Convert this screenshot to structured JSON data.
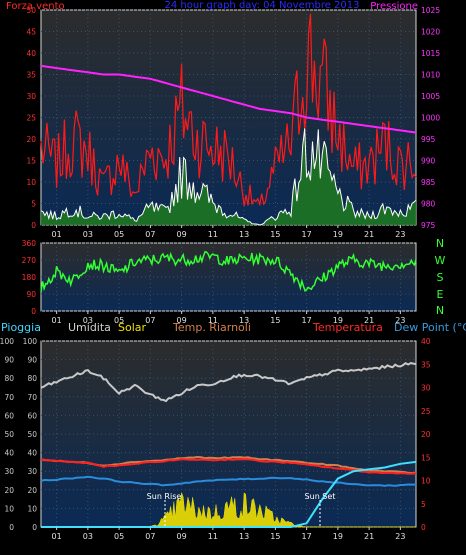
{
  "header": {
    "wind_label": "Forza vento",
    "title": "24 hour graph day: 04 Novembre 2013",
    "pressure_label": "Pressione"
  },
  "direction_labels": [
    "N",
    "W",
    "S",
    "E",
    "N"
  ],
  "lower_legend": {
    "rain": "Pioggia",
    "humidity": "Umidita",
    "solar": "Solar",
    "feels_like": "Temp. Riarnoli",
    "temperature": "Temperatura",
    "dew_point": "Dew Point (°C)"
  },
  "annotations": {
    "sunrise": "Sun Rise",
    "sunset": "Sun Set"
  },
  "colors": {
    "wind_gust": "#ff1a1a",
    "wind_avg": "#ffffff",
    "wind_fill": "#1f7a1f",
    "pressure": "#ff22ff",
    "direction": "#33ff33",
    "humidity": "#c8c8c8",
    "solar": "#f0e000",
    "temperature": "#ff2020",
    "feels_like": "#d08050",
    "dew_point": "#2a8cdc",
    "rain": "#40e0ff",
    "panel_top": "#2a2a2a",
    "panel_bottom": "#0a2a55"
  },
  "chart_data": [
    {
      "type": "line",
      "title": "24 hour graph day: 04 Novembre 2013",
      "x_ticks": [
        "01",
        "03",
        "05",
        "07",
        "09",
        "11",
        "13",
        "15",
        "17",
        "19",
        "21",
        "23"
      ],
      "x": [
        0,
        1,
        2,
        3,
        4,
        5,
        6,
        7,
        8,
        9,
        10,
        11,
        12,
        13,
        14,
        15,
        16,
        17,
        18,
        19,
        20,
        21,
        22,
        23,
        24
      ],
      "left_axis": {
        "ticks": [
          0,
          5,
          10,
          15,
          20,
          25,
          30,
          35,
          40,
          45,
          50
        ],
        "ylim": [
          0,
          50
        ]
      },
      "right_axis": {
        "ticks": [
          975,
          980,
          985,
          990,
          995,
          1000,
          1005,
          1010,
          1015,
          1020,
          1025
        ],
        "ylim": [
          975,
          1025
        ]
      },
      "series": [
        {
          "name": "Forza vento",
          "axis": "left",
          "style": "gust",
          "values": [
            18,
            14,
            20,
            17,
            9,
            15,
            7,
            17,
            16,
            27,
            20,
            18,
            16,
            8,
            4,
            13,
            19,
            40,
            33,
            21,
            13,
            14,
            19,
            14,
            16
          ]
        },
        {
          "name": "Forza vento",
          "axis": "left",
          "style": "average",
          "values": [
            3,
            2,
            4,
            2,
            2,
            3,
            1,
            4,
            3,
            12,
            9,
            5,
            3,
            1,
            0,
            2,
            4,
            18,
            14,
            7,
            3,
            2,
            4,
            3,
            4
          ]
        },
        {
          "name": "Pressione",
          "axis": "right",
          "style": "line",
          "values": [
            1012,
            1011.5,
            1011,
            1010.5,
            1010,
            1010,
            1009.5,
            1009,
            1008,
            1007,
            1006,
            1005,
            1004,
            1003,
            1002,
            1001.5,
            1001,
            1000,
            999.5,
            999,
            998.5,
            998,
            997.5,
            997,
            996.5
          ]
        }
      ]
    },
    {
      "type": "line",
      "x_ticks": [
        "01",
        "03",
        "05",
        "07",
        "09",
        "11",
        "13",
        "15",
        "17",
        "19",
        "21",
        "23"
      ],
      "x": [
        0,
        1,
        2,
        3,
        4,
        5,
        6,
        7,
        8,
        9,
        10,
        11,
        12,
        13,
        14,
        15,
        16,
        17,
        18,
        19,
        20,
        21,
        22,
        23,
        24
      ],
      "y_ticks": [
        0,
        90,
        180,
        270,
        360
      ],
      "ylim": [
        0,
        360
      ],
      "series": [
        {
          "name": "direction",
          "values": [
            120,
            210,
            160,
            250,
            240,
            200,
            260,
            270,
            280,
            270,
            280,
            290,
            260,
            280,
            275,
            270,
            200,
            120,
            170,
            240,
            270,
            250,
            240,
            250,
            260
          ]
        }
      ]
    },
    {
      "type": "line",
      "x_ticks": [
        "01",
        "03",
        "05",
        "07",
        "09",
        "11",
        "13",
        "15",
        "17",
        "19",
        "21",
        "23"
      ],
      "x": [
        0,
        1,
        2,
        3,
        4,
        5,
        6,
        7,
        8,
        9,
        10,
        11,
        12,
        13,
        14,
        15,
        16,
        17,
        18,
        19,
        20,
        21,
        22,
        23,
        24
      ],
      "left_axis": {
        "ticks": [
          0,
          10,
          20,
          30,
          40,
          50,
          60,
          70,
          80,
          90,
          100
        ],
        "ylim": [
          0,
          100
        ]
      },
      "right_axis": {
        "ticks": [
          0,
          5,
          10,
          15,
          20,
          25,
          30,
          35,
          40
        ],
        "ylim": [
          0,
          40
        ]
      },
      "series": [
        {
          "name": "Umidita",
          "axis": "left",
          "values": [
            75,
            78,
            81,
            84,
            80,
            72,
            76,
            71,
            68,
            72,
            76,
            77,
            80,
            82,
            81,
            79,
            77,
            80,
            82,
            84,
            84,
            85,
            86,
            87,
            88
          ]
        },
        {
          "name": "Solar",
          "axis": "left",
          "values": [
            0,
            0,
            0,
            0,
            0,
            0,
            0,
            0,
            5,
            14,
            10,
            8,
            12,
            13,
            10,
            5,
            2,
            0,
            0,
            0,
            0,
            0,
            0,
            0,
            0
          ]
        },
        {
          "name": "Temp. Riarnoli",
          "axis": "right",
          "values": [
            14.5,
            14.2,
            14.0,
            13.8,
            13.2,
            13.6,
            14.0,
            14.2,
            14.4,
            14.8,
            15.0,
            14.8,
            14.9,
            15.0,
            14.6,
            14.4,
            14.2,
            13.8,
            13.5,
            13.2,
            12.6,
            12.2,
            12.0,
            11.8,
            11.6
          ]
        },
        {
          "name": "Temperatura",
          "axis": "right",
          "values": [
            14.5,
            14.2,
            14.0,
            13.8,
            13.0,
            13.2,
            13.6,
            13.9,
            14.2,
            14.5,
            14.5,
            14.4,
            14.5,
            14.6,
            14.2,
            14.0,
            13.8,
            13.4,
            13.0,
            12.6,
            12.2,
            11.8,
            11.6,
            11.6,
            11.5
          ]
        },
        {
          "name": "Dew Point (°C)",
          "axis": "right",
          "values": [
            10.0,
            10.2,
            10.5,
            10.8,
            10.4,
            9.8,
            9.5,
            9.2,
            9.0,
            9.4,
            9.8,
            10.0,
            10.2,
            10.3,
            10.4,
            10.6,
            10.5,
            10.2,
            9.8,
            9.5,
            9.2,
            9.0,
            8.9,
            9.0,
            9.2
          ]
        },
        {
          "name": "Pioggia",
          "axis": "left",
          "values": [
            0,
            0,
            0,
            0,
            0,
            0,
            0,
            0,
            0,
            0,
            0,
            0,
            0,
            0,
            0,
            0,
            0,
            2,
            15,
            26,
            30,
            31,
            32,
            34,
            35
          ]
        }
      ]
    }
  ]
}
